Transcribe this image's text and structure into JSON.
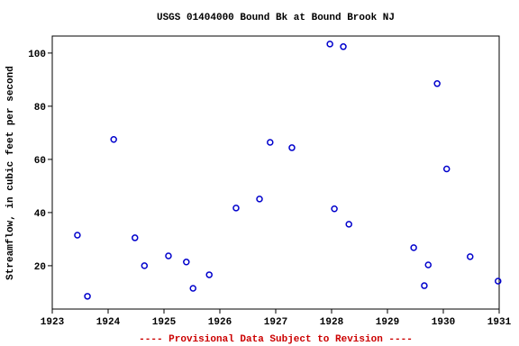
{
  "chart_data": {
    "type": "scatter",
    "title": "USGS 01404000 Bound Bk at Bound Brook NJ",
    "y_label": "Streamflow, in cubic feet per second",
    "footnote": "---- Provisional Data Subject to Revision ----",
    "footnote_color": "#cc0000",
    "color": "#0000cc",
    "x": [
      1923.45,
      1923.63,
      1924.1,
      1924.48,
      1924.65,
      1925.08,
      1925.4,
      1925.52,
      1925.81,
      1926.29,
      1926.71,
      1926.9,
      1927.29,
      1927.97,
      1928.05,
      1928.21,
      1928.31,
      1929.47,
      1929.66,
      1929.73,
      1929.89,
      1930.06,
      1930.48,
      1930.98
    ],
    "values": [
      31.5,
      8.5,
      67.5,
      30.5,
      20,
      23.7,
      21.4,
      11.5,
      16.6,
      41.7,
      45.1,
      66.4,
      64.4,
      103.4,
      41.4,
      102.4,
      35.6,
      26.8,
      12.5,
      20.3,
      88.5,
      56.4,
      23.4,
      14.2
    ],
    "xlim": [
      1923,
      1931
    ],
    "xticks": [
      1923,
      1924,
      1925,
      1926,
      1927,
      1928,
      1929,
      1930,
      1931
    ],
    "ylim": [
      3.7,
      106.4
    ],
    "yticks": [
      20,
      40,
      60,
      80,
      100
    ]
  }
}
